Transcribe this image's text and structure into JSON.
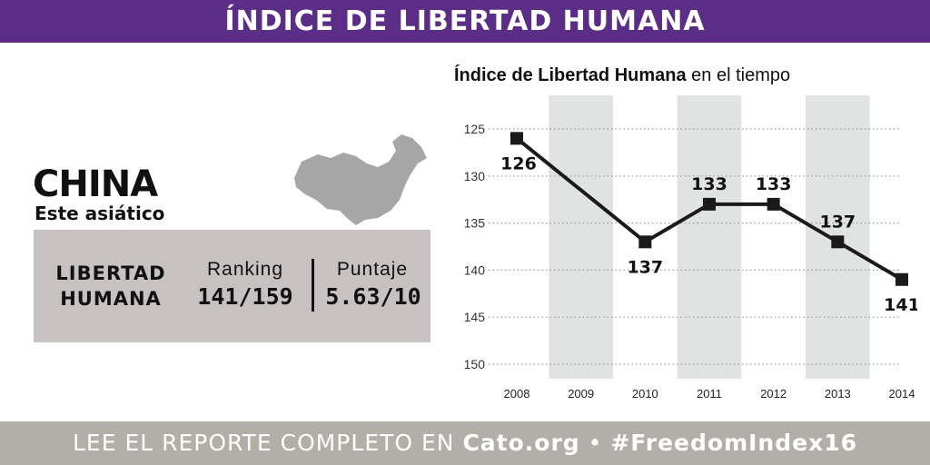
{
  "header": {
    "title": "ÍNDICE DE LIBERTAD HUMANA"
  },
  "country": {
    "name": "CHINA",
    "region": "Este asiático",
    "map_icon": "china-map-icon"
  },
  "infobox": {
    "label_line1": "LIBERTAD",
    "label_line2": "HUMANA",
    "ranking_label": "Ranking",
    "ranking_value": "141/159",
    "score_label": "Puntaje",
    "score_value": "5.63/10"
  },
  "chart_title": {
    "bold": "Índice de Libertad Humana",
    "rest": " en el tiempo"
  },
  "footer": {
    "prefix": "LEE EL REPORTE COMPLETO EN ",
    "site": "Cato.org",
    "separator": " • ",
    "hashtag": "#FreedomIndex16"
  },
  "colors": {
    "header_bg": "#5c2d86",
    "footer_bg": "#b2afa8",
    "infobox_bg": "#c7c1c2",
    "band": "#e1e3e3",
    "line": "#1a1a1a"
  },
  "chart_data": {
    "type": "line",
    "categories": [
      "2008",
      "2009",
      "2010",
      "2011",
      "2012",
      "2013",
      "2014"
    ],
    "series": [
      {
        "values": [
          126,
          null,
          137,
          133,
          133,
          137,
          141
        ]
      }
    ],
    "data_labels": [
      "126",
      "",
      "137",
      "133",
      "133",
      "137",
      "141"
    ],
    "y_ticks": [
      "125",
      "130",
      "135",
      "140",
      "145",
      "150"
    ],
    "ylim": [
      125,
      150
    ],
    "y_inverted": true,
    "grid": "horizontal-dotted",
    "shaded_categories": [
      "2009",
      "2011",
      "2013"
    ]
  }
}
